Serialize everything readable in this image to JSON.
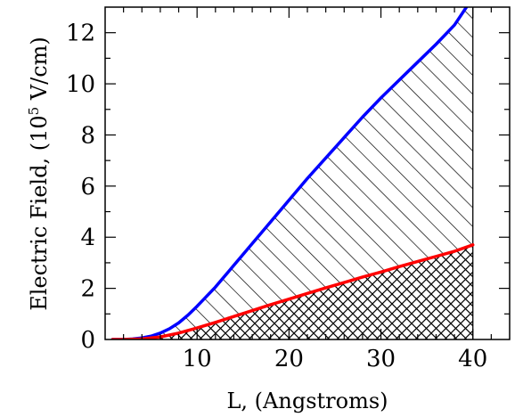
{
  "chart_data": {
    "type": "area",
    "xlabel": "L, (Angstroms)",
    "ylabel_prefix": "Electric Field, (10",
    "ylabel_exponent": "5",
    "ylabel_suffix": " V/cm)",
    "xlim": [
      0,
      44
    ],
    "ylim": [
      0,
      13
    ],
    "x_ticks": [
      10,
      20,
      30,
      40
    ],
    "y_ticks": [
      0,
      2,
      4,
      6,
      8,
      10,
      12
    ],
    "grid": false,
    "legend": "none",
    "fill_extent_x": 40,
    "series": [
      {
        "color": "#0000ff",
        "fill": "single-hatch",
        "x": [
          0.8,
          2,
          3,
          4,
          5,
          6,
          7,
          8,
          9,
          10,
          12,
          14,
          16,
          18,
          20,
          22,
          24,
          26,
          28,
          30,
          32,
          34,
          36,
          38,
          39.3
        ],
        "y": [
          0.0,
          0.0,
          0.02,
          0.06,
          0.13,
          0.25,
          0.42,
          0.65,
          0.95,
          1.3,
          2.05,
          2.9,
          3.75,
          4.6,
          5.45,
          6.3,
          7.1,
          7.9,
          8.7,
          9.45,
          10.15,
          10.85,
          11.55,
          12.3,
          13.0
        ]
      },
      {
        "color": "#ff0000",
        "fill": "cross-hatch",
        "x": [
          0.8,
          2,
          4,
          6,
          8,
          10,
          12,
          14,
          16,
          18,
          20,
          22,
          24,
          26,
          28,
          30,
          32,
          34,
          36,
          38,
          40
        ],
        "y": [
          0.0,
          0.0,
          0.02,
          0.1,
          0.25,
          0.45,
          0.67,
          0.9,
          1.13,
          1.36,
          1.58,
          1.8,
          2.02,
          2.23,
          2.44,
          2.64,
          2.85,
          3.05,
          3.25,
          3.45,
          3.7
        ]
      }
    ]
  }
}
